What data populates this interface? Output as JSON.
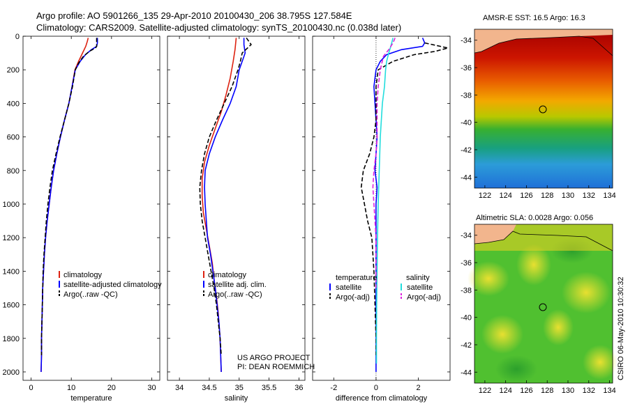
{
  "header": {
    "line1": "Argo profile: AO 5901266_135 29-Apr-2010 20100430_206 38.795S 127.584E",
    "line2": "Climatology: CARS2009. Satellite-adjusted climatology: synTS_20100430.nc (0.038d later)"
  },
  "colors": {
    "climatology": "#dd2211",
    "satellite": "#0000ff",
    "argo": "#000000",
    "salinity_satellite": "#22dddd",
    "salinity_argo": "#dd22dd"
  },
  "chart_data": [
    {
      "type": "line",
      "id": "temperature",
      "xlabel": "temperature",
      "xlim": [
        -2,
        32
      ],
      "ylim": [
        2050,
        0
      ],
      "xticks": [
        0,
        10,
        20,
        30
      ],
      "yticks": [
        0,
        200,
        400,
        600,
        800,
        1000,
        1200,
        1400,
        1600,
        1800,
        2000
      ],
      "legend": {
        "position": "lower-right",
        "entries": [
          "climatology",
          "satellite-adjusted climatology",
          "Argo(..raw -QC)"
        ]
      },
      "series": [
        {
          "name": "climatology",
          "color": "#dd2211",
          "dash": "solid",
          "points": [
            [
              14.2,
              10
            ],
            [
              14,
              30
            ],
            [
              13.6,
              60
            ],
            [
              12.8,
              100
            ],
            [
              11.8,
              150
            ],
            [
              10.9,
              200
            ],
            [
              10.2,
              300
            ],
            [
              9.4,
              400
            ],
            [
              8.3,
              500
            ],
            [
              7.3,
              600
            ],
            [
              6.4,
              700
            ],
            [
              5.6,
              800
            ],
            [
              5,
              900
            ],
            [
              4.5,
              1000
            ],
            [
              4,
              1100
            ],
            [
              3.6,
              1200
            ],
            [
              3.3,
              1300
            ],
            [
              3.1,
              1400
            ],
            [
              2.9,
              1500
            ],
            [
              2.8,
              1600
            ],
            [
              2.7,
              1700
            ],
            [
              2.6,
              1800
            ],
            [
              2.6,
              1900
            ],
            [
              2.5,
              2000
            ]
          ]
        },
        {
          "name": "satellite-adjusted climatology",
          "color": "#0000ff",
          "dash": "solid",
          "points": [
            [
              16.5,
              10
            ],
            [
              16.5,
              40
            ],
            [
              16.3,
              60
            ],
            [
              15,
              80
            ],
            [
              13.5,
              110
            ],
            [
              12.2,
              150
            ],
            [
              11,
              200
            ],
            [
              10.2,
              300
            ],
            [
              9.4,
              400
            ],
            [
              8.3,
              500
            ],
            [
              7.3,
              600
            ],
            [
              6.4,
              700
            ],
            [
              5.6,
              800
            ],
            [
              5,
              900
            ],
            [
              4.5,
              1000
            ],
            [
              4,
              1100
            ],
            [
              3.6,
              1200
            ],
            [
              3.3,
              1300
            ],
            [
              3.1,
              1400
            ],
            [
              2.9,
              1500
            ],
            [
              2.8,
              1600
            ],
            [
              2.7,
              1700
            ],
            [
              2.6,
              1800
            ],
            [
              2.6,
              1900
            ],
            [
              2.5,
              2000
            ]
          ]
        },
        {
          "name": "Argo(..raw -QC)",
          "color": "#000000",
          "dash": "dashed",
          "points": [
            [
              16.3,
              10
            ],
            [
              16.3,
              60
            ],
            [
              16,
              70
            ],
            [
              14.5,
              90
            ],
            [
              13,
              120
            ],
            [
              11.8,
              160
            ],
            [
              11,
              200
            ],
            [
              10.3,
              300
            ],
            [
              9.4,
              400
            ],
            [
              8.3,
              500
            ],
            [
              7.2,
              600
            ],
            [
              6.2,
              700
            ],
            [
              5.3,
              800
            ],
            [
              4.7,
              900
            ],
            [
              4.2,
              1000
            ],
            [
              3.8,
              1100
            ],
            [
              3.5,
              1200
            ],
            [
              3.2,
              1300
            ],
            [
              3,
              1400
            ],
            [
              2.9,
              1500
            ],
            [
              2.8,
              1600
            ],
            [
              2.7,
              1700
            ],
            [
              2.6,
              1800
            ],
            [
              2.6,
              1900
            ]
          ]
        }
      ]
    },
    {
      "type": "line",
      "id": "salinity",
      "xlabel": "salinity",
      "xlim": [
        33.8,
        36.1
      ],
      "ylim": [
        2050,
        0
      ],
      "xticks": [
        34,
        34.5,
        35,
        35.5,
        36
      ],
      "legend": {
        "position": "lower-right",
        "entries": [
          "climatology",
          "satellite adj. clim.",
          "Argo(..raw -QC)"
        ]
      },
      "annotation": [
        "US ARGO PROJECT",
        "PI: DEAN ROEMMICH"
      ],
      "series": [
        {
          "name": "climatology",
          "color": "#dd2211",
          "dash": "solid",
          "points": [
            [
              34.95,
              10
            ],
            [
              34.93,
              80
            ],
            [
              34.9,
              150
            ],
            [
              34.85,
              250
            ],
            [
              34.78,
              350
            ],
            [
              34.7,
              450
            ],
            [
              34.6,
              550
            ],
            [
              34.5,
              650
            ],
            [
              34.42,
              750
            ],
            [
              34.38,
              850
            ],
            [
              34.38,
              950
            ],
            [
              34.4,
              1050
            ],
            [
              34.45,
              1150
            ],
            [
              34.5,
              1250
            ],
            [
              34.55,
              1350
            ],
            [
              34.58,
              1450
            ],
            [
              34.62,
              1550
            ],
            [
              34.65,
              1650
            ],
            [
              34.68,
              1800
            ],
            [
              34.7,
              2000
            ]
          ]
        },
        {
          "name": "satellite adj. clim.",
          "color": "#0000ff",
          "dash": "solid",
          "points": [
            [
              35.08,
              10
            ],
            [
              35.08,
              50
            ],
            [
              35.1,
              100
            ],
            [
              35.05,
              150
            ],
            [
              35,
              200
            ],
            [
              34.95,
              300
            ],
            [
              34.85,
              400
            ],
            [
              34.72,
              500
            ],
            [
              34.6,
              600
            ],
            [
              34.5,
              700
            ],
            [
              34.43,
              800
            ],
            [
              34.42,
              900
            ],
            [
              34.43,
              1000
            ],
            [
              34.45,
              1100
            ],
            [
              34.47,
              1200
            ],
            [
              34.52,
              1300
            ],
            [
              34.56,
              1400
            ],
            [
              34.6,
              1500
            ],
            [
              34.63,
              1600
            ],
            [
              34.66,
              1700
            ],
            [
              34.68,
              1800
            ],
            [
              34.7,
              2000
            ]
          ]
        },
        {
          "name": "Argo(..raw -QC)",
          "color": "#000000",
          "dash": "dashed",
          "points": [
            [
              35.12,
              10
            ],
            [
              35.2,
              50
            ],
            [
              35.05,
              100
            ],
            [
              35.02,
              150
            ],
            [
              34.98,
              200
            ],
            [
              34.88,
              300
            ],
            [
              34.75,
              400
            ],
            [
              34.62,
              500
            ],
            [
              34.5,
              600
            ],
            [
              34.42,
              700
            ],
            [
              34.37,
              800
            ],
            [
              34.34,
              900
            ],
            [
              34.35,
              1000
            ],
            [
              34.38,
              1100
            ],
            [
              34.43,
              1200
            ],
            [
              34.48,
              1300
            ],
            [
              34.53,
              1400
            ],
            [
              34.58,
              1500
            ],
            [
              34.62,
              1600
            ],
            [
              34.65,
              1700
            ],
            [
              34.68,
              1800
            ],
            [
              34.7,
              1900
            ]
          ]
        }
      ]
    },
    {
      "type": "line",
      "id": "difference",
      "xlabel": "difference from climatology",
      "xlim": [
        -3,
        3.5
      ],
      "ylim": [
        2050,
        0
      ],
      "xticks": [
        -2,
        0,
        2
      ],
      "legend": {
        "position": "lower-center",
        "group_temperature": [
          "temperature",
          "satellite",
          "Argo(-adj)"
        ],
        "group_salinity": [
          "salinity",
          "satellite",
          "Argo(-adj)"
        ]
      },
      "series": [
        {
          "name": "satellite",
          "group": "temperature",
          "color": "#0000ff",
          "dash": "solid",
          "points": [
            [
              2.2,
              10
            ],
            [
              2.3,
              40
            ],
            [
              2.2,
              60
            ],
            [
              1.2,
              80
            ],
            [
              0.5,
              110
            ],
            [
              0.2,
              150
            ],
            [
              0,
              200
            ],
            [
              -0.1,
              300
            ],
            [
              -0.05,
              400
            ],
            [
              0,
              500
            ],
            [
              0.05,
              600
            ],
            [
              0,
              700
            ],
            [
              -0.05,
              800
            ],
            [
              0.05,
              900
            ],
            [
              0,
              1000
            ],
            [
              0,
              1400
            ],
            [
              0,
              2000
            ]
          ]
        },
        {
          "name": "Argo(-adj)",
          "group": "temperature",
          "color": "#000000",
          "dash": "dashed",
          "points": [
            [
              2.3,
              40
            ],
            [
              3.4,
              70
            ],
            [
              2.8,
              90
            ],
            [
              1.8,
              110
            ],
            [
              0.8,
              150
            ],
            [
              0.1,
              200
            ],
            [
              0,
              300
            ],
            [
              0,
              500
            ],
            [
              -0.1,
              600
            ],
            [
              -0.3,
              700
            ],
            [
              -0.6,
              800
            ],
            [
              -0.7,
              900
            ],
            [
              -0.55,
              1000
            ],
            [
              -0.4,
              1100
            ],
            [
              -0.2,
              1200
            ],
            [
              -0.1,
              1400
            ],
            [
              -0.05,
              1600
            ],
            [
              0,
              1800
            ],
            [
              0,
              1900
            ]
          ]
        },
        {
          "name": "satellite",
          "group": "salinity",
          "color": "#22dddd",
          "dash": "solid",
          "points": [
            [
              0.8,
              10
            ],
            [
              0.7,
              60
            ],
            [
              0.6,
              100
            ],
            [
              0.5,
              150
            ],
            [
              0.45,
              200
            ],
            [
              0.4,
              300
            ],
            [
              0.3,
              400
            ],
            [
              0.25,
              500
            ],
            [
              0.2,
              600
            ],
            [
              0.15,
              800
            ],
            [
              0.1,
              1000
            ],
            [
              0.07,
              1200
            ],
            [
              0.05,
              1400
            ],
            [
              0.03,
              1600
            ],
            [
              0.02,
              1800
            ],
            [
              0.02,
              1950
            ]
          ]
        },
        {
          "name": "Argo(-adj)",
          "group": "salinity",
          "color": "#dd22dd",
          "dash": "dashed",
          "points": [
            [
              0.9,
              10
            ],
            [
              0.8,
              40
            ],
            [
              0.6,
              80
            ],
            [
              0.35,
              120
            ],
            [
              0.2,
              200
            ],
            [
              0.1,
              300
            ],
            [
              0.05,
              400
            ],
            [
              0.05,
              600
            ],
            [
              0,
              700
            ],
            [
              -0.1,
              800
            ],
            [
              -0.15,
              900
            ],
            [
              -0.1,
              1000
            ],
            [
              -0.05,
              1100
            ],
            [
              0,
              1200
            ],
            [
              0,
              1500
            ]
          ]
        }
      ]
    }
  ],
  "maps": [
    {
      "id": "sst",
      "title": "AMSR-E SST: 16.5 Argo: 16.3",
      "xticks": [
        122,
        124,
        126,
        128,
        130,
        132,
        134
      ],
      "yticks": [
        -34,
        -36,
        -38,
        -40,
        -42,
        -44
      ],
      "marker": {
        "lon": 127.584,
        "lat": -38.795
      }
    },
    {
      "id": "sla",
      "title": "Altimetric SLA: 0.0028 Argo: 0.056",
      "xticks": [
        122,
        124,
        126,
        128,
        130,
        132,
        134
      ],
      "yticks": [
        -34,
        -36,
        -38,
        -40,
        -42,
        -44
      ],
      "marker": {
        "lon": 127.584,
        "lat": -38.795
      }
    }
  ],
  "side_label": "CSIRO 06-May-2010 10:30:32"
}
